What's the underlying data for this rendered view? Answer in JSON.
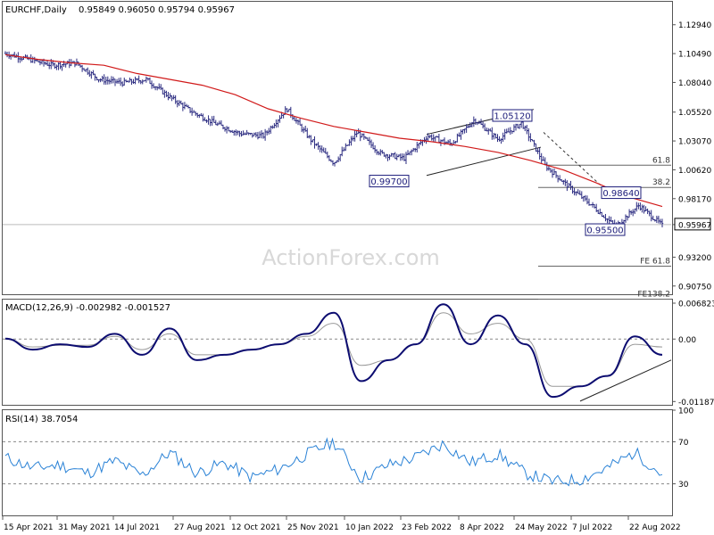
{
  "chart_data": [
    {
      "type": "candlestick",
      "title": "EURCHF,Daily",
      "ohlc_label": "0.95849 0.96050 0.95794 0.95967",
      "y_ticks": [
        "1.12940",
        "1.10490",
        "1.08040",
        "1.05520",
        "1.03070",
        "1.00620",
        "0.98170",
        "0.95967",
        "0.93200",
        "0.90750"
      ],
      "ylim": [
        0.9005,
        1.1489
      ],
      "current_price": 0.95967,
      "current_price_label": "0.95967",
      "watermark": "ActionForex.com",
      "ma_series": [
        1.104,
        1.1,
        1.097,
        1.095,
        1.088,
        1.083,
        1.078,
        1.07,
        1.058,
        1.05,
        1.043,
        1.038,
        1.033,
        1.03,
        1.026,
        1.021,
        1.014,
        1.006,
        0.995,
        0.983,
        0.975
      ],
      "price_series": [
        1.105,
        1.1,
        1.095,
        1.097,
        1.083,
        1.08,
        1.083,
        1.068,
        1.055,
        1.045,
        1.037,
        1.035,
        1.058,
        1.032,
        1.012,
        1.038,
        1.02,
        1.016,
        1.035,
        1.028,
        1.049,
        1.032,
        1.046,
        1.01,
        0.992,
        0.976,
        0.958,
        0.976,
        0.959
      ],
      "price_labels": [
        {
          "text": "1.05120"
        },
        {
          "text": "0.99700"
        },
        {
          "text": "0.98640"
        },
        {
          "text": "0.95500"
        }
      ],
      "fib_levels": [
        {
          "label": "61.8",
          "value": 1.0101
        },
        {
          "label": "38.2",
          "value": 0.9912
        },
        {
          "label": "FE 61.8",
          "value": 0.9244
        },
        {
          "label": "FE138.2",
          "value": 0.8963
        }
      ]
    },
    {
      "type": "line",
      "title": "MACD(12,26,9) -0.002982 -0.001527",
      "y_ticks": [
        "0.006823",
        "0.00",
        "-0.011874"
      ],
      "ylim": [
        -0.0125,
        0.0075
      ],
      "macd": [
        0.0001,
        -0.002,
        -0.001,
        -0.0015,
        0.001,
        -0.003,
        0.002,
        -0.004,
        -0.003,
        -0.002,
        -0.001,
        0.001,
        0.005,
        -0.008,
        -0.004,
        -0.001,
        0.0066,
        -0.001,
        0.0045,
        -0.001,
        -0.011,
        -0.009,
        -0.007,
        0.0005,
        -0.003
      ],
      "signal": [
        0.0001,
        -0.0015,
        -0.0012,
        -0.0012,
        0.0005,
        -0.002,
        0.001,
        -0.003,
        -0.003,
        -0.002,
        -0.001,
        0.0005,
        0.003,
        -0.005,
        -0.004,
        -0.001,
        0.005,
        0.001,
        0.003,
        0.0,
        -0.009,
        -0.009,
        -0.007,
        -0.001,
        -0.0015
      ]
    },
    {
      "type": "line",
      "title": "RSI(14) 38.7054",
      "y_ticks": [
        "100",
        "70",
        "30"
      ],
      "ylim": [
        0,
        100
      ],
      "rsi": [
        55,
        45,
        48,
        40,
        52,
        38,
        60,
        40,
        50,
        36,
        44,
        58,
        70,
        35,
        48,
        55,
        68,
        50,
        58,
        40,
        32,
        34,
        45,
        60,
        38.7
      ]
    }
  ],
  "x_axis_labels": [
    "15 Apr 2021",
    "31 May 2021",
    "14 Jul 2021",
    "27 Aug 2021",
    "12 Oct 2021",
    "25 Nov 2021",
    "10 Jan 2022",
    "23 Feb 2022",
    "8 Apr 2022",
    "24 May 2022",
    "7 Jul 2022",
    "22 Aug 2022"
  ],
  "colors": {
    "candle": "#2b2b80",
    "ma": "#d11a1a",
    "macd": "#0c0c70",
    "signal": "#999999",
    "rsi": "#2a82d6",
    "axis": "#555555",
    "label_border": "#1c1c7a"
  }
}
